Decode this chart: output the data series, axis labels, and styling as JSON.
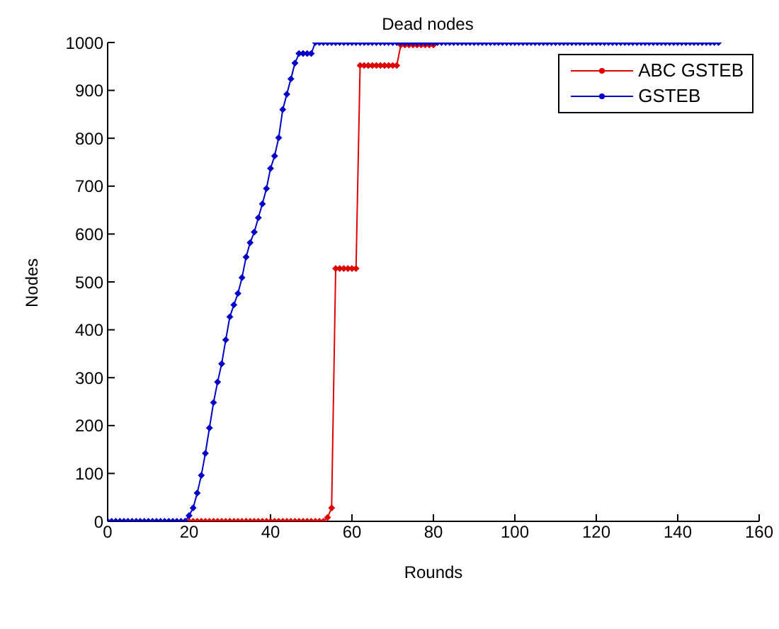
{
  "chart_data": {
    "type": "line",
    "title": "Dead nodes",
    "xlabel": "Rounds",
    "ylabel": "Nodes",
    "x": [
      0,
      1,
      2,
      3,
      4,
      5,
      6,
      7,
      8,
      9,
      10,
      11,
      12,
      13,
      14,
      15,
      16,
      17,
      18,
      19,
      20,
      21,
      22,
      23,
      24,
      25,
      26,
      27,
      28,
      29,
      30,
      31,
      32,
      33,
      34,
      35,
      36,
      37,
      38,
      39,
      40,
      41,
      42,
      43,
      44,
      45,
      46,
      47,
      48,
      49,
      50,
      51,
      52,
      53,
      54,
      55,
      56,
      57,
      58,
      59,
      60,
      61,
      62,
      63,
      64,
      65,
      66,
      67,
      68,
      69,
      70,
      71,
      72,
      73,
      74,
      75,
      76,
      77,
      78,
      79,
      80,
      81,
      82,
      83,
      84,
      85,
      86,
      87,
      88,
      89,
      90,
      91,
      92,
      93,
      94,
      95,
      96,
      97,
      98,
      99,
      100,
      101,
      102,
      103,
      104,
      105,
      106,
      107,
      108,
      109,
      110,
      111,
      112,
      113,
      114,
      115,
      116,
      117,
      118,
      119,
      120,
      121,
      122,
      123,
      124,
      125,
      126,
      127,
      128,
      129,
      130,
      131,
      132,
      133,
      134,
      135,
      136,
      137,
      138,
      139,
      140,
      141,
      142,
      143,
      144,
      145,
      146,
      147,
      148,
      149,
      150
    ],
    "series": [
      {
        "name": "ABC GSTEB",
        "color": "#e00000",
        "values": [
          null,
          null,
          null,
          null,
          null,
          null,
          null,
          null,
          null,
          null,
          null,
          null,
          null,
          null,
          null,
          null,
          null,
          null,
          null,
          0,
          0,
          0,
          0,
          0,
          0,
          0,
          0,
          0,
          0,
          0,
          0,
          0,
          0,
          0,
          0,
          0,
          0,
          0,
          0,
          0,
          0,
          0,
          0,
          0,
          0,
          0,
          0,
          0,
          0,
          0,
          0,
          0,
          0,
          0,
          8,
          28,
          528,
          528,
          528,
          528,
          528,
          528,
          952,
          952,
          952,
          952,
          952,
          952,
          952,
          952,
          952,
          952,
          995,
          995,
          995,
          995,
          995,
          995,
          995,
          995,
          995,
          1000,
          null,
          null,
          null,
          null,
          null,
          null,
          null,
          null,
          null,
          null,
          null,
          null,
          null,
          null,
          null,
          null,
          null,
          null,
          null,
          null,
          null,
          null,
          null,
          null,
          null,
          null,
          null,
          null,
          null,
          null,
          null,
          null,
          null,
          null,
          null,
          null,
          null,
          null,
          null,
          null,
          null,
          null,
          null,
          null,
          null,
          null,
          null,
          null,
          null,
          null,
          null,
          null,
          null,
          null,
          null,
          null,
          null,
          null,
          null,
          null,
          null,
          null,
          null,
          null,
          null,
          null,
          null,
          null,
          null
        ]
      },
      {
        "name": "GSTEB",
        "color": "#0000c8",
        "values": [
          0,
          0,
          0,
          0,
          0,
          0,
          0,
          0,
          0,
          0,
          0,
          0,
          0,
          0,
          0,
          0,
          0,
          0,
          0,
          0,
          12,
          28,
          59,
          96,
          142,
          195,
          248,
          291,
          329,
          379,
          427,
          452,
          476,
          509,
          552,
          582,
          604,
          634,
          663,
          695,
          737,
          763,
          801,
          860,
          892,
          924,
          957,
          977,
          977,
          977,
          977,
          1000,
          1000,
          1000,
          1000,
          1000,
          1000,
          1000,
          1000,
          1000,
          1000,
          1000,
          1000,
          1000,
          1000,
          1000,
          1000,
          1000,
          1000,
          1000,
          1000,
          1000,
          1000,
          1000,
          1000,
          1000,
          1000,
          1000,
          1000,
          1000,
          1000,
          1000,
          1000,
          1000,
          1000,
          1000,
          1000,
          1000,
          1000,
          1000,
          1000,
          1000,
          1000,
          1000,
          1000,
          1000,
          1000,
          1000,
          1000,
          1000,
          1000,
          1000,
          1000,
          1000,
          1000,
          1000,
          1000,
          1000,
          1000,
          1000,
          1000,
          1000,
          1000,
          1000,
          1000,
          1000,
          1000,
          1000,
          1000,
          1000,
          1000,
          1000,
          1000,
          1000,
          1000,
          1000,
          1000,
          1000,
          1000,
          1000,
          1000,
          1000,
          1000,
          1000,
          1000,
          1000,
          1000,
          1000,
          1000,
          1000,
          1000,
          1000,
          1000,
          1000,
          1000,
          1000,
          1000,
          1000,
          1000,
          1000,
          1000
        ]
      }
    ],
    "xlim": [
      0,
      160
    ],
    "xticks": [
      0,
      20,
      40,
      60,
      80,
      100,
      120,
      140,
      160
    ],
    "ylim": [
      0,
      1000
    ],
    "yticks": [
      0,
      100,
      200,
      300,
      400,
      500,
      600,
      700,
      800,
      900,
      1000
    ],
    "grid": false,
    "legend": "top right",
    "marker": "diamond",
    "line_style": "solid"
  }
}
